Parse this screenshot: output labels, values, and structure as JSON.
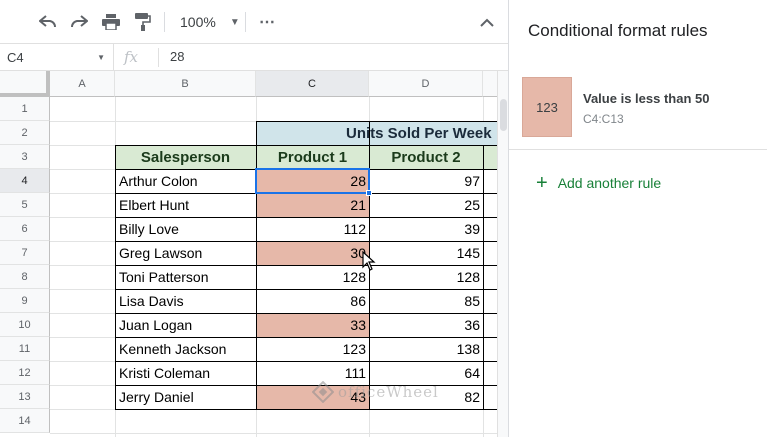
{
  "toolbar": {
    "zoom": "100%",
    "more": "⋯"
  },
  "formula_bar": {
    "cell_ref": "C4",
    "fx": "fx",
    "value": "28"
  },
  "columns": [
    "A",
    "B",
    "C",
    "D"
  ],
  "rows": [
    "1",
    "2",
    "3",
    "4",
    "5",
    "6",
    "7",
    "8",
    "9",
    "10",
    "11",
    "12",
    "13",
    "14"
  ],
  "table": {
    "band_title": "Units Sold Per Week",
    "headers": {
      "salesperson": "Salesperson",
      "product1": "Product 1",
      "product2": "Product 2"
    },
    "records": [
      {
        "name": "Arthur Colon",
        "p1": "28",
        "p2": "97"
      },
      {
        "name": "Elbert Hunt",
        "p1": "21",
        "p2": "25"
      },
      {
        "name": "Billy Love",
        "p1": "112",
        "p2": "39"
      },
      {
        "name": "Greg Lawson",
        "p1": "30",
        "p2": "145"
      },
      {
        "name": "Toni Patterson",
        "p1": "128",
        "p2": "128"
      },
      {
        "name": "Lisa Davis",
        "p1": "86",
        "p2": "85"
      },
      {
        "name": "Juan Logan",
        "p1": "33",
        "p2": "36"
      },
      {
        "name": "Kenneth Jackson",
        "p1": "123",
        "p2": "138"
      },
      {
        "name": "Kristi Coleman",
        "p1": "111",
        "p2": "64"
      },
      {
        "name": "Jerry Daniel",
        "p1": "43",
        "p2": "82"
      }
    ]
  },
  "panel": {
    "title": "Conditional format rules",
    "rule": {
      "preview": "123",
      "label": "Value is less than 50",
      "range": "C4:C13"
    },
    "add_rule": "Add another rule"
  },
  "watermark": "officeWheel",
  "colors": {
    "highlight": "#e6b8a9",
    "header_fill": "#d9ead3",
    "band_fill": "#d0e4ea",
    "accent": "#1a73e8",
    "add_rule": "#188038"
  }
}
